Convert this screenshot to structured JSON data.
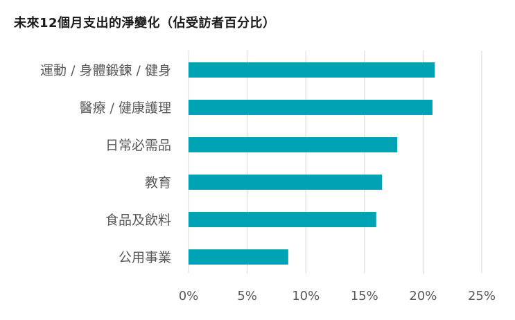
{
  "chart_data": {
    "type": "bar",
    "orientation": "horizontal",
    "title": "未來12個月支出的淨變化（佔受訪者百分比）",
    "categories": [
      "運動 / 身體鍛鍊 / 健身",
      "醫療 / 健康護理",
      "日常必需品",
      "教育",
      "食品及飲料",
      "公用事業"
    ],
    "values": [
      21.0,
      20.8,
      17.8,
      16.5,
      16.0,
      8.5
    ],
    "value_unit": "%",
    "xlim": [
      0,
      25
    ],
    "xticks": [
      0,
      5,
      10,
      15,
      20,
      25
    ],
    "xtick_labels": [
      "0%",
      "5%",
      "10%",
      "15%",
      "20%",
      "25%"
    ],
    "xlabel": "",
    "ylabel": "",
    "grid": "vertical",
    "legend": "none",
    "bar_color": "#00A3B4",
    "grid_color": "#d9d9d9",
    "label_color": "#595959"
  }
}
